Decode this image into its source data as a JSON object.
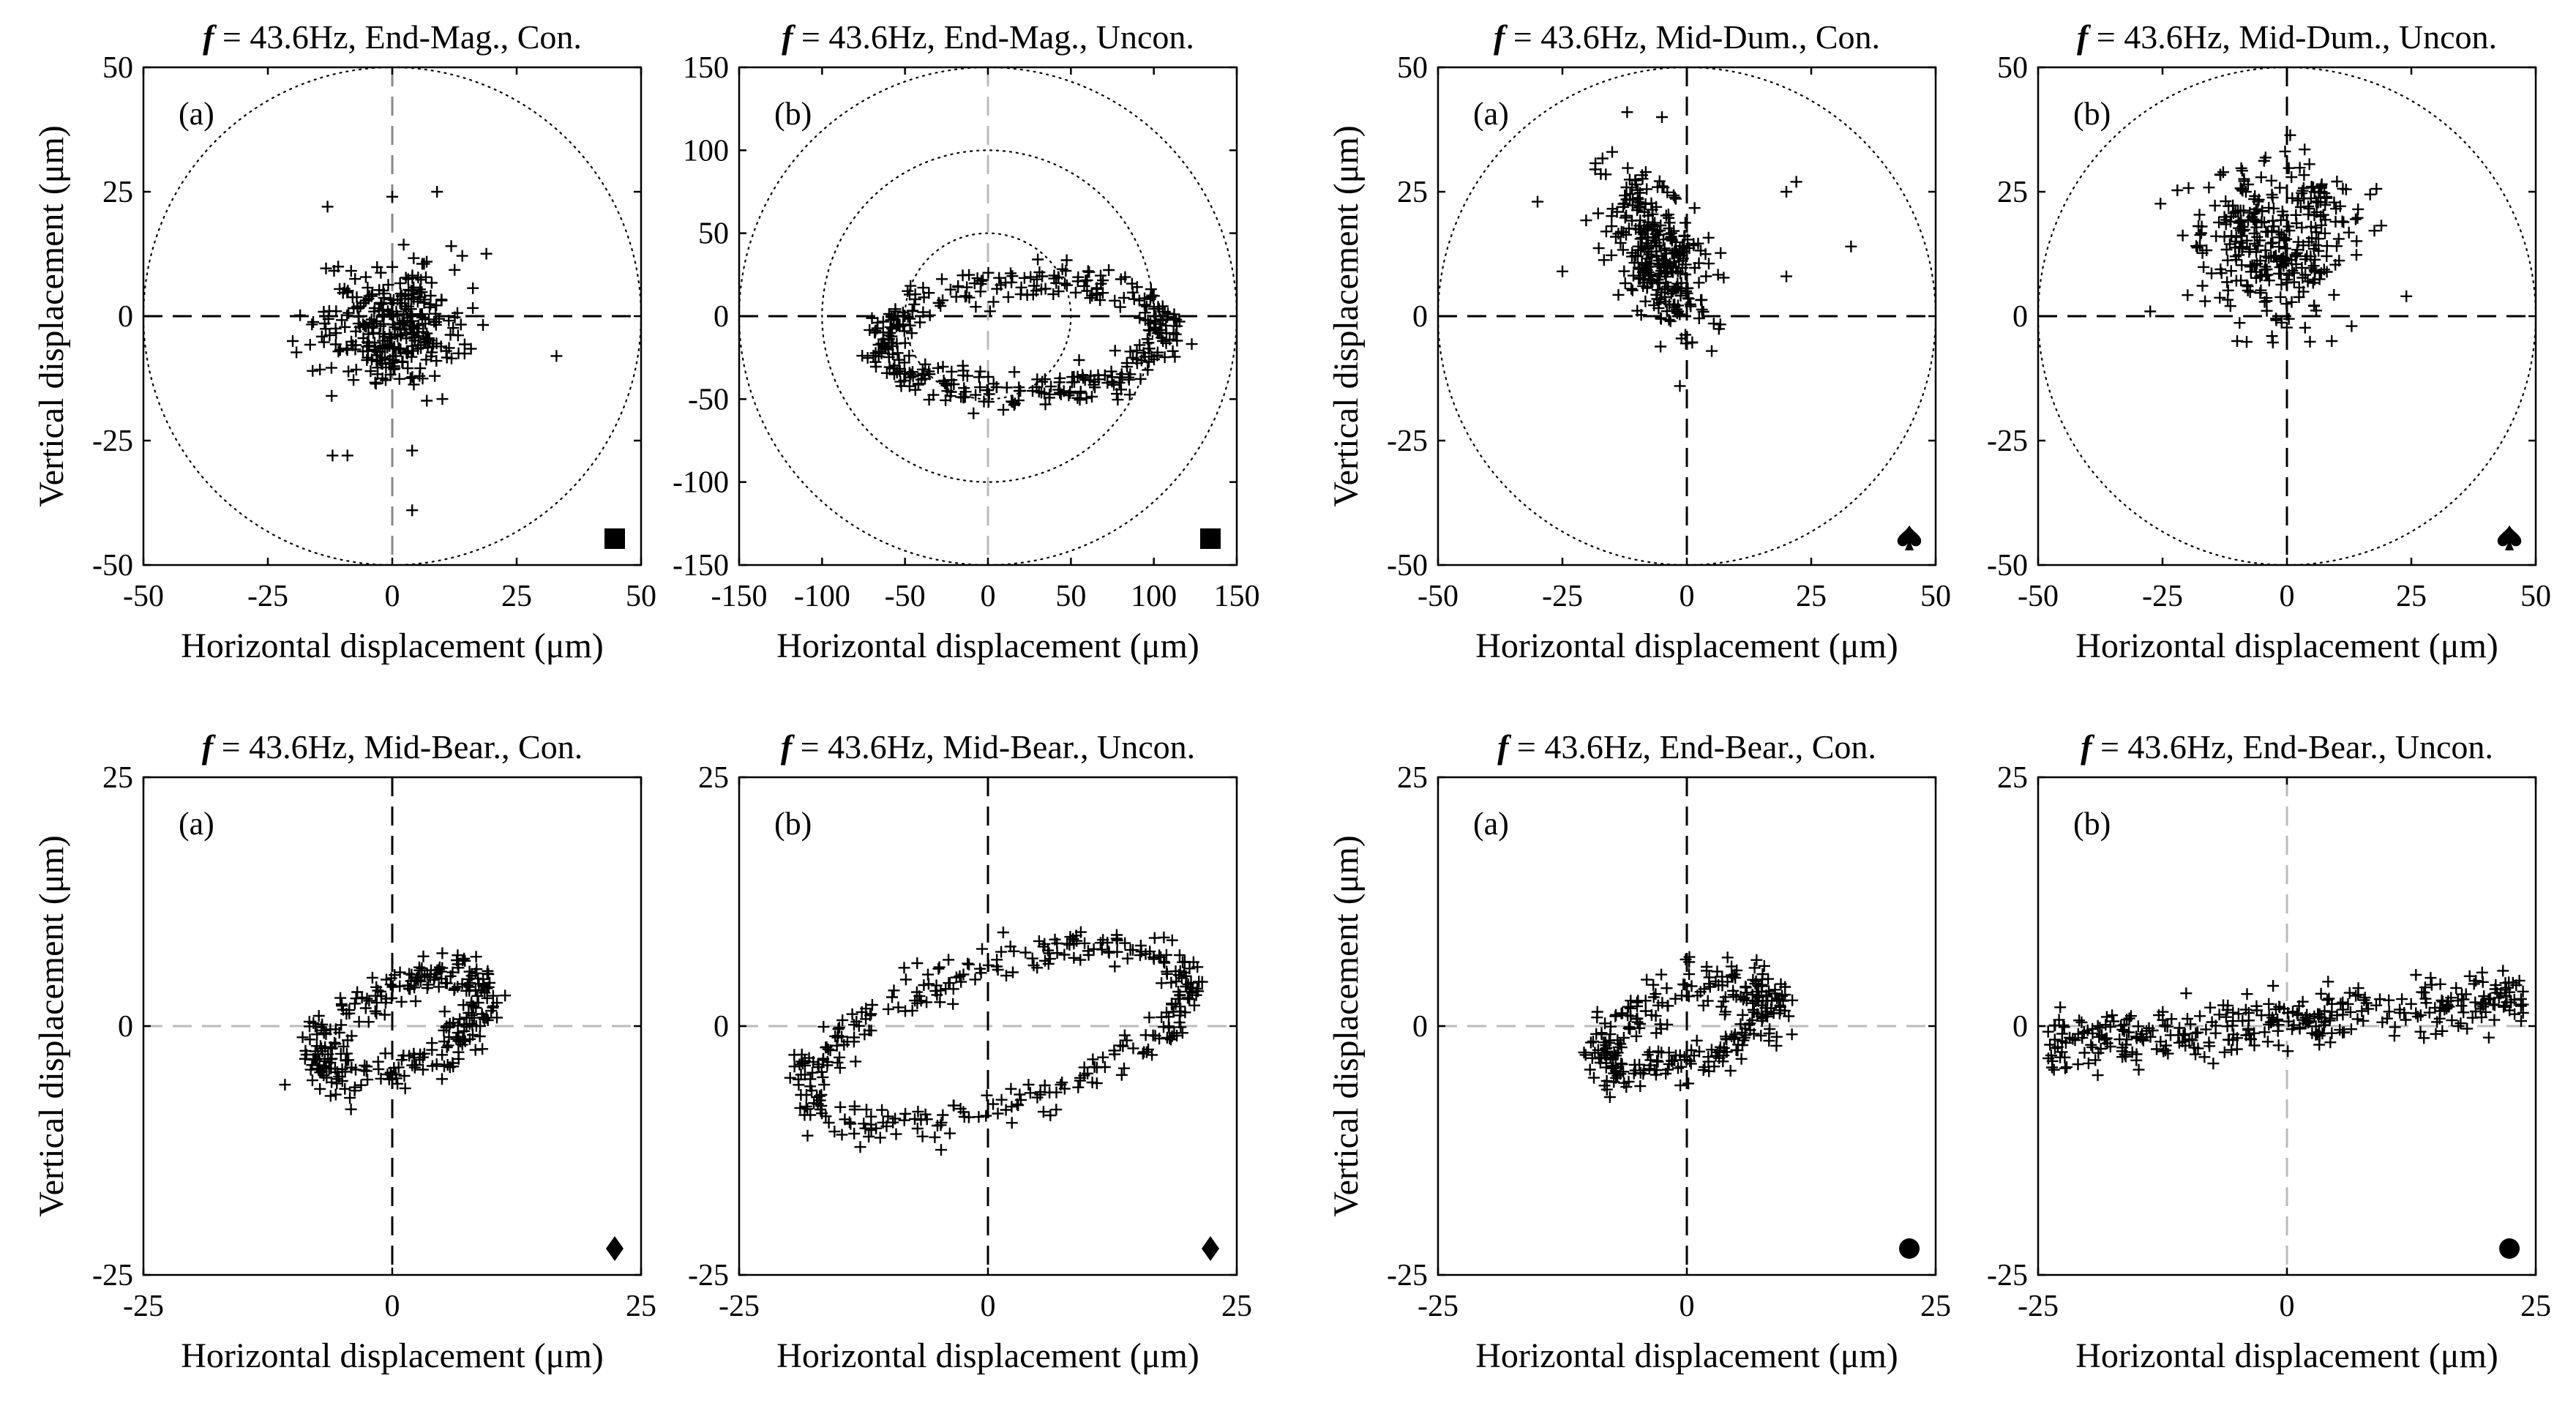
{
  "figure": {
    "description_labels": {
      "var": "f",
      "freq_text": " = 43.6Hz, ",
      "xlabel_prefix": "Horizontal displacement (",
      "xlabel_mu": "μ",
      "xlabel_suffix": "m)",
      "ylabel_prefix": "Vertical displacement (",
      "ylabel_mu": "μ",
      "ylabel_suffix": "m)"
    }
  },
  "chart_data": [
    {
      "id": "end-mag-con",
      "type": "scatter",
      "grid_row": 0,
      "grid_col": 0,
      "title_suffix": "End-Mag., Con.",
      "panel_label": "(a)",
      "marker_symbol": "square",
      "xlim": [
        -50,
        50
      ],
      "ylim": [
        -50,
        50
      ],
      "xticks": [
        -50,
        -25,
        0,
        25,
        50
      ],
      "yticks": [
        -50,
        -25,
        0,
        25,
        50
      ],
      "xticklabels": [
        "-50",
        "-25",
        "0",
        "25",
        "50"
      ],
      "yticklabels": [
        "-50",
        "-25",
        "0",
        "25",
        "50"
      ],
      "circle_radii": [
        50
      ],
      "xlabel": "Horizontal displacement (μm)",
      "ylabel": "Vertical displacement (μm)",
      "crosshair_color_h": "#000000",
      "crosshair_color_v": "#888888",
      "cloud": {
        "kind": "cluster",
        "cx": 0,
        "cy": -2,
        "sx": 7,
        "sy": 6,
        "n": 320
      },
      "outliers": [
        [
          -12,
          -28
        ],
        [
          -9,
          -28
        ],
        [
          4,
          -27
        ],
        [
          4,
          -39
        ],
        [
          33,
          -8
        ],
        [
          -13,
          22
        ],
        [
          0,
          24
        ],
        [
          9,
          25
        ],
        [
          -20,
          -5
        ],
        [
          -16,
          -11
        ]
      ]
    },
    {
      "id": "end-mag-uncon",
      "type": "scatter",
      "grid_row": 0,
      "grid_col": 1,
      "title_suffix": "End-Mag., Uncon.",
      "panel_label": "(b)",
      "marker_symbol": "square",
      "xlim": [
        -150,
        150
      ],
      "ylim": [
        -150,
        150
      ],
      "xticks": [
        -150,
        -100,
        -50,
        0,
        50,
        100,
        150
      ],
      "yticks": [
        -150,
        -100,
        -50,
        0,
        50,
        100,
        150
      ],
      "xticklabels": [
        "-150",
        "-100",
        "-50",
        "0",
        "50",
        "100",
        "150"
      ],
      "yticklabels": [
        "-150",
        "-100",
        "-50",
        "0",
        "50",
        "100",
        "150"
      ],
      "circle_radii": [
        150,
        100,
        50
      ],
      "xlabel": "Horizontal displacement (μm)",
      "ylabel": "Vertical displacement (μm)",
      "crosshair_color_h": "#000000",
      "crosshair_color_v": "#bbbbbb",
      "cloud": {
        "kind": "ring",
        "cx": 22,
        "cy": -12,
        "rx": 85,
        "ry": 33,
        "tilt": 0.05,
        "noise": 6,
        "n": 380
      },
      "outliers": []
    },
    {
      "id": "mid-dum-con",
      "type": "scatter",
      "grid_row": 0,
      "grid_col": 2,
      "title_suffix": "Mid-Dum., Con.",
      "panel_label": "(a)",
      "marker_symbol": "spade",
      "xlim": [
        -50,
        50
      ],
      "ylim": [
        -50,
        50
      ],
      "xticks": [
        -50,
        -25,
        0,
        25,
        50
      ],
      "yticks": [
        -50,
        -25,
        0,
        25,
        50
      ],
      "xticklabels": [
        "-50",
        "-25",
        "0",
        "25",
        "50"
      ],
      "yticklabels": [
        "-50",
        "-25",
        "0",
        "25",
        "50"
      ],
      "circle_radii": [
        50
      ],
      "xlabel": "Horizontal displacement (μm)",
      "ylabel": "Vertical displacement (μm)",
      "crosshair_color_h": "#000000",
      "crosshair_color_v": "#000000",
      "cloud": {
        "kind": "cluster",
        "cx": -6,
        "cy": 13,
        "sx": 5,
        "sy": 8,
        "n": 300,
        "corr": -0.5
      },
      "outliers": [
        [
          -30,
          23
        ],
        [
          -25,
          9
        ],
        [
          -12,
          41
        ],
        [
          -5,
          40
        ],
        [
          20,
          25
        ],
        [
          22,
          27
        ],
        [
          33,
          14
        ],
        [
          20,
          8
        ],
        [
          -15,
          33
        ],
        [
          5,
          -7
        ]
      ]
    },
    {
      "id": "mid-dum-uncon",
      "type": "scatter",
      "grid_row": 0,
      "grid_col": 3,
      "title_suffix": "Mid-Dum., Uncon.",
      "panel_label": "(b)",
      "marker_symbol": "spade",
      "xlim": [
        -50,
        50
      ],
      "ylim": [
        -50,
        50
      ],
      "xticks": [
        -50,
        -25,
        0,
        25,
        50
      ],
      "yticks": [
        -50,
        -25,
        0,
        25,
        50
      ],
      "xticklabels": [
        "-50",
        "-25",
        "0",
        "25",
        "50"
      ],
      "yticklabels": [
        "-50",
        "-25",
        "0",
        "25",
        "50"
      ],
      "circle_radii": [
        50
      ],
      "xlabel": "Horizontal displacement (μm)",
      "ylabel": "Vertical displacement (μm)",
      "crosshair_color_h": "#000000",
      "crosshair_color_v": "#000000",
      "cloud": {
        "kind": "cluster",
        "cx": -2,
        "cy": 16,
        "sx": 8,
        "sy": 8,
        "n": 320
      },
      "outliers": [
        [
          24,
          4
        ],
        [
          -10,
          -5
        ],
        [
          9,
          -5
        ],
        [
          -3,
          -4
        ],
        [
          13,
          -2
        ]
      ]
    },
    {
      "id": "mid-bear-con",
      "type": "scatter",
      "grid_row": 1,
      "grid_col": 0,
      "title_suffix": "Mid-Bear., Con.",
      "panel_label": "(a)",
      "marker_symbol": "diamond",
      "xlim": [
        -25,
        25
      ],
      "ylim": [
        -25,
        25
      ],
      "xticks": [
        -25,
        0,
        25
      ],
      "yticks": [
        -25,
        0,
        25
      ],
      "xticklabels": [
        "-25",
        "0",
        "25"
      ],
      "yticklabels": [
        "-25",
        "0",
        "25"
      ],
      "circle_radii": [],
      "xlabel": "Horizontal displacement (μm)",
      "ylabel": "Vertical displacement (μm)",
      "crosshair_color_h": "#bbbbbb",
      "crosshair_color_v": "#000000",
      "cloud": {
        "kind": "ring",
        "cx": 1,
        "cy": 0,
        "rx": 9,
        "ry": 4,
        "tilt": 0.45,
        "noise": 1.2,
        "n": 300
      },
      "outliers": []
    },
    {
      "id": "mid-bear-uncon",
      "type": "scatter",
      "grid_row": 1,
      "grid_col": 1,
      "title_suffix": "Mid-Bear., Uncon.",
      "panel_label": "(b)",
      "marker_symbol": "diamond",
      "xlim": [
        -25,
        25
      ],
      "ylim": [
        -25,
        25
      ],
      "xticks": [
        -25,
        0,
        25
      ],
      "yticks": [
        -25,
        0,
        25
      ],
      "xticklabels": [
        "-25",
        "0",
        "25"
      ],
      "yticklabels": [
        "-25",
        "0",
        "25"
      ],
      "circle_radii": [],
      "xlabel": "Horizontal displacement (μm)",
      "ylabel": "Vertical displacement (μm)",
      "crosshair_color_h": "#bbbbbb",
      "crosshair_color_v": "#000000",
      "cloud": {
        "kind": "ring",
        "cx": 1,
        "cy": -1,
        "rx": 20,
        "ry": 7,
        "tilt": 0.3,
        "noise": 1.0,
        "n": 360
      },
      "outliers": []
    },
    {
      "id": "end-bear-con",
      "type": "scatter",
      "grid_row": 1,
      "grid_col": 2,
      "title_suffix": "End-Bear., Con.",
      "panel_label": "(a)",
      "marker_symbol": "circle",
      "xlim": [
        -25,
        25
      ],
      "ylim": [
        -25,
        25
      ],
      "xticks": [
        -25,
        0,
        25
      ],
      "yticks": [
        -25,
        0,
        25
      ],
      "xticklabels": [
        "-25",
        "0",
        "25"
      ],
      "yticklabels": [
        "-25",
        "0",
        "25"
      ],
      "circle_radii": [],
      "xlabel": "Horizontal displacement (μm)",
      "ylabel": "Vertical displacement (μm)",
      "crosshair_color_h": "#bbbbbb",
      "crosshair_color_v": "#000000",
      "cloud": {
        "kind": "ring",
        "cx": 0,
        "cy": 0,
        "rx": 9,
        "ry": 3.5,
        "tilt": 0.35,
        "noise": 1.2,
        "n": 300
      },
      "outliers": []
    },
    {
      "id": "end-bear-uncon",
      "type": "scatter",
      "grid_row": 1,
      "grid_col": 3,
      "title_suffix": "End-Bear., Uncon.",
      "panel_label": "(b)",
      "marker_symbol": "circle",
      "xlim": [
        -25,
        25
      ],
      "ylim": [
        -25,
        25
      ],
      "xticks": [
        -25,
        0,
        25
      ],
      "yticks": [
        -25,
        0,
        25
      ],
      "xticklabels": [
        "-25",
        "0",
        "25"
      ],
      "yticklabels": [
        "-25",
        "0",
        "25"
      ],
      "circle_radii": [],
      "xlabel": "Horizontal displacement (μm)",
      "ylabel": "Vertical displacement (μm)",
      "crosshair_color_h": "#bbbbbb",
      "crosshair_color_v": "#bbbbbb",
      "cloud": {
        "kind": "band",
        "x0": -24,
        "x1": 24,
        "y0": -2,
        "y1": 3,
        "noise": 1.4,
        "n": 360
      },
      "outliers": []
    }
  ]
}
